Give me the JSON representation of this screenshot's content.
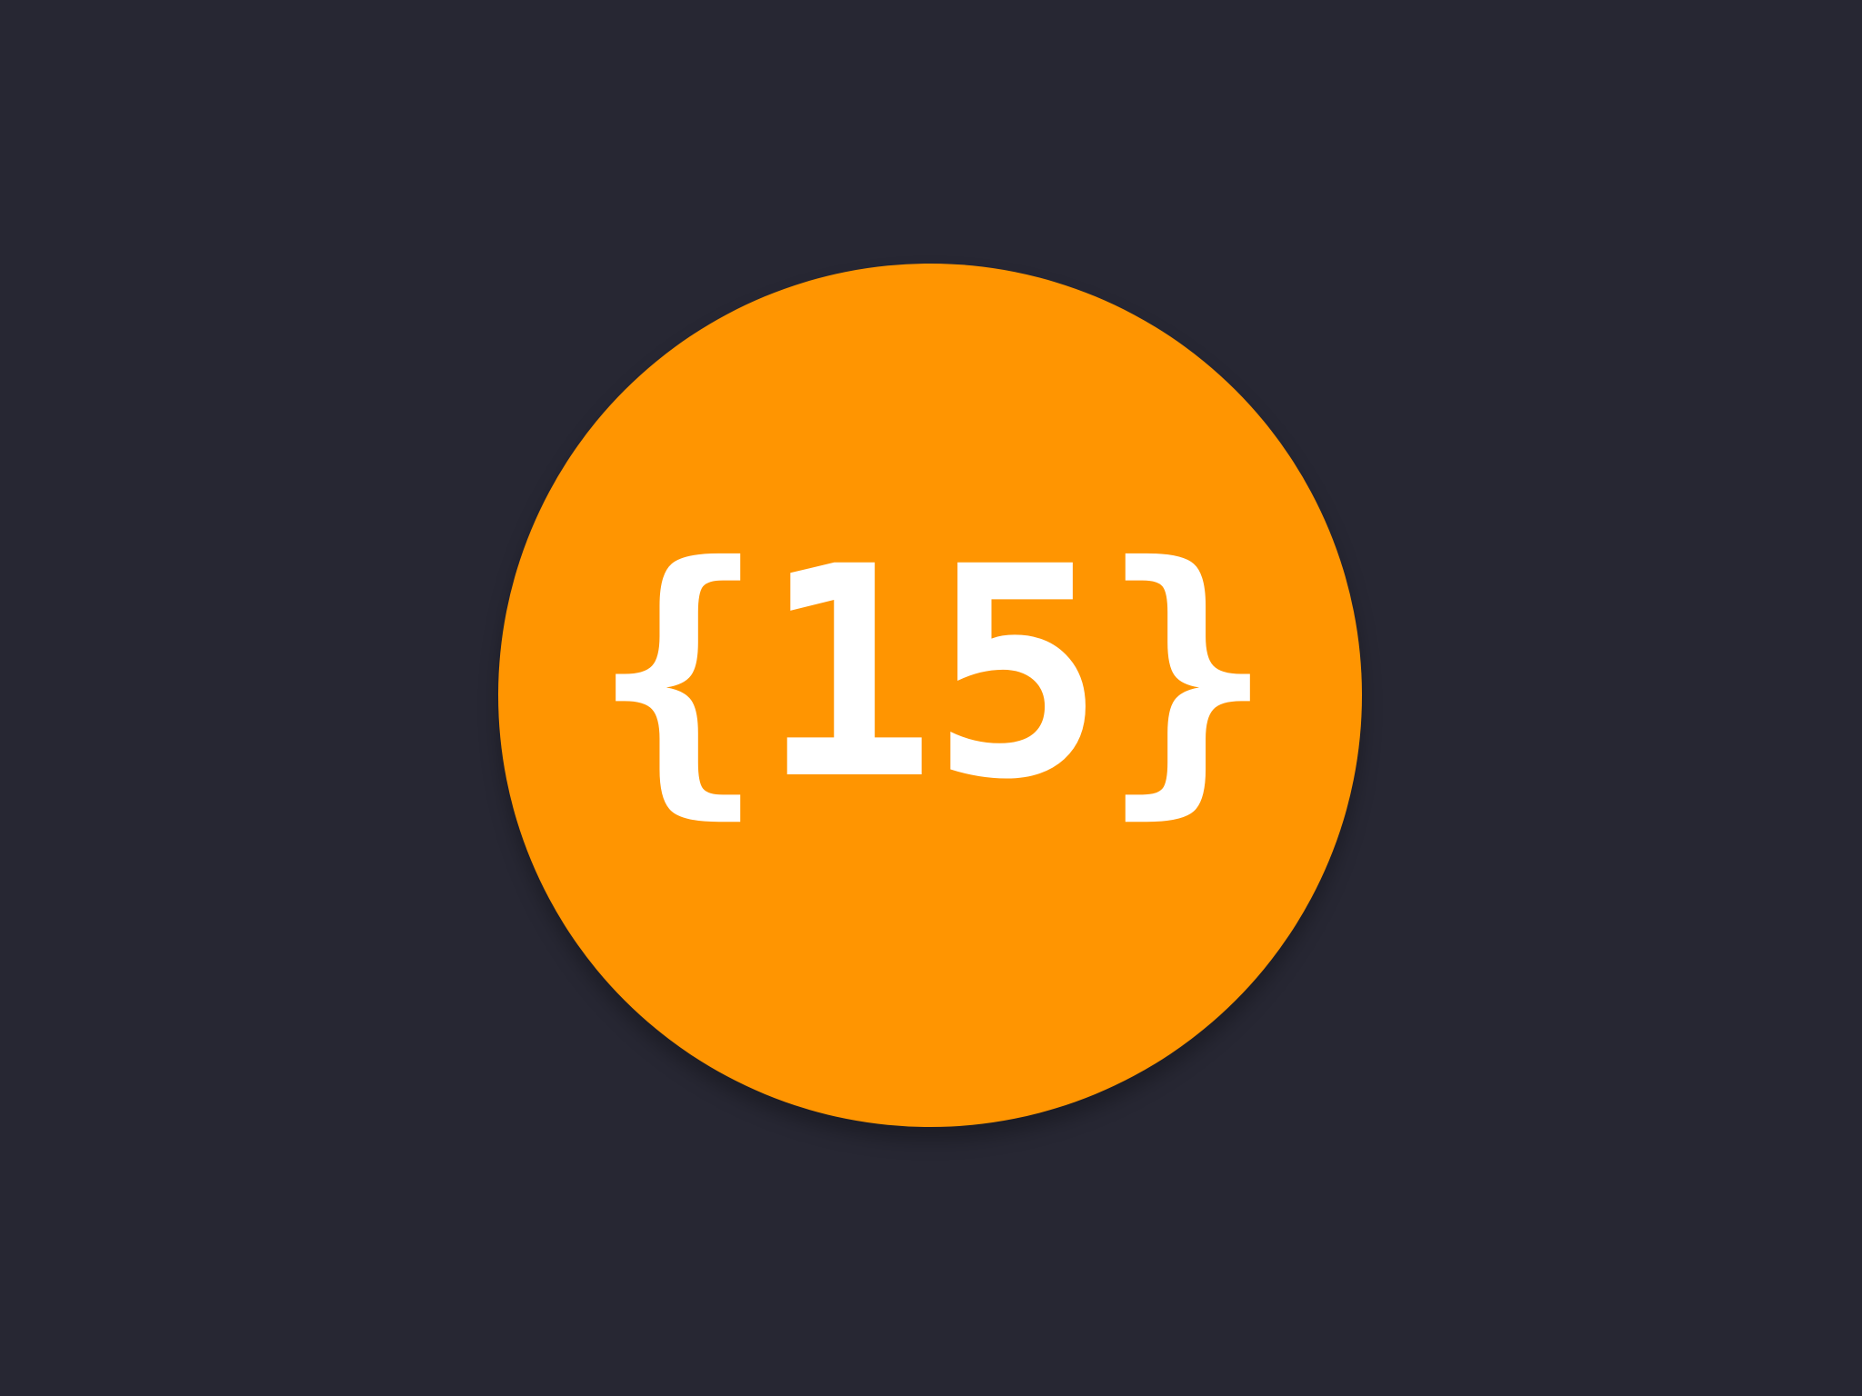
{
  "badge": {
    "text": "{15}",
    "background_color": "#FF9501",
    "text_color": "#FFFFFF"
  },
  "page": {
    "background_color": "#272733"
  }
}
